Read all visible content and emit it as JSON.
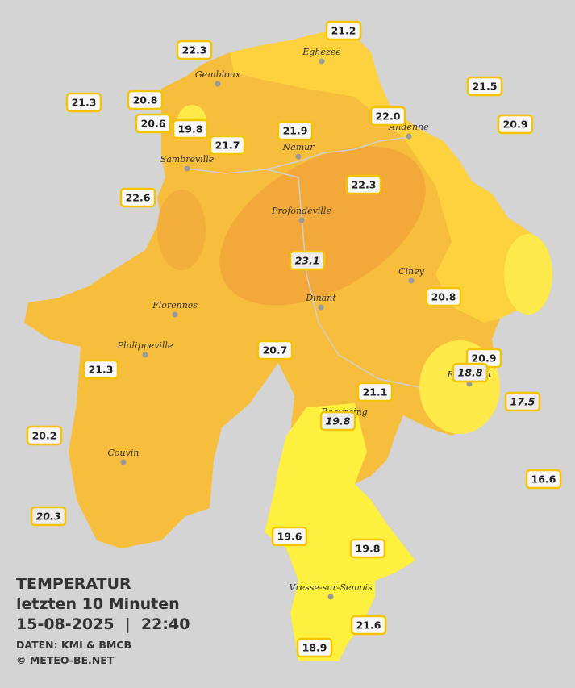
{
  "title": {
    "lines": [
      "TEMPERATUR",
      "letzten 10 Minuten",
      "15-08-2025  |  22:40"
    ],
    "source": "DATEN: KMI & BMCB",
    "copyright": "© METEO-BE.NET"
  },
  "cities": [
    "Eghezee",
    "Gembloux",
    "Andenne",
    "Namur",
    "Sambreville",
    "Profondeville",
    "Ciney",
    "Dinant",
    "Florennes",
    "Philippeville",
    "Rochefort",
    "Beauraing",
    "Couvin",
    "Vresse-sur-Semois"
  ],
  "stations": [
    {
      "label": "22.3"
    },
    {
      "label": "21.2"
    },
    {
      "label": "21.3"
    },
    {
      "label": "20.8"
    },
    {
      "label": "20.6"
    },
    {
      "label": "19.8"
    },
    {
      "label": "21.9"
    },
    {
      "label": "21.7"
    },
    {
      "label": "22.0"
    },
    {
      "label": "21.5"
    },
    {
      "label": "20.9"
    },
    {
      "label": "22.6"
    },
    {
      "label": "22.3"
    },
    {
      "label": "23.1",
      "italic": true
    },
    {
      "label": "20.8"
    },
    {
      "label": "20.7"
    },
    {
      "label": "20.9"
    },
    {
      "label": "18.8",
      "italic": true
    },
    {
      "label": "21.3"
    },
    {
      "label": "21.1"
    },
    {
      "label": "17.5",
      "italic": true
    },
    {
      "label": "19.8",
      "italic": true
    },
    {
      "label": "20.2"
    },
    {
      "label": "16.6"
    },
    {
      "label": "20.3",
      "italic": true
    },
    {
      "label": "19.6"
    },
    {
      "label": "19.8"
    },
    {
      "label": "21.6"
    },
    {
      "label": "18.9"
    }
  ]
}
